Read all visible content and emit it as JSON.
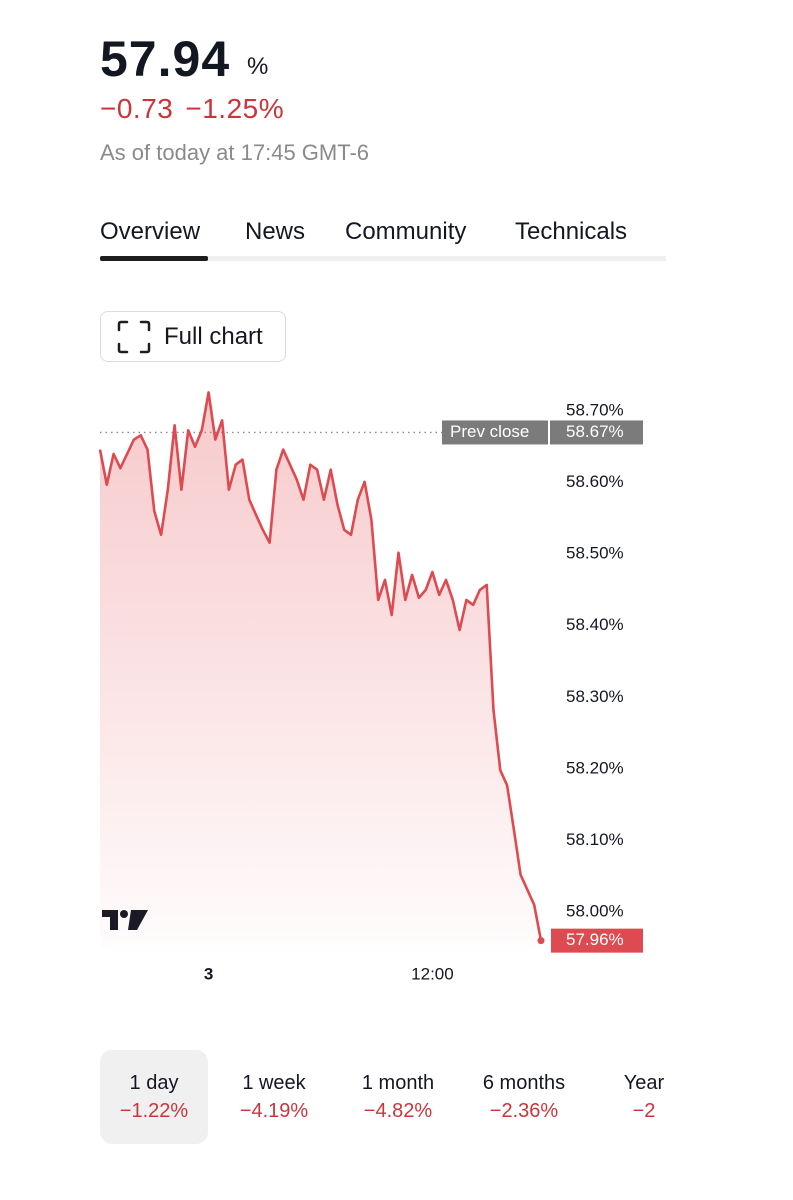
{
  "header": {
    "price": "57.94",
    "unit": "%",
    "change": "−0.73",
    "change_pct": "−1.25%",
    "as_of": "As of today at 17:45 GMT-6"
  },
  "tabs": [
    "Overview",
    "News",
    "Community",
    "Technicals"
  ],
  "full_chart": "Full chart",
  "chart_data": {
    "type": "line",
    "categories": [
      null,
      null,
      null,
      null,
      null,
      null,
      null,
      null,
      null,
      null,
      null,
      null,
      null,
      null,
      null,
      null,
      "3",
      null,
      null,
      null,
      null,
      null,
      null,
      null,
      null,
      null,
      null,
      null,
      null,
      null,
      null,
      null,
      null,
      null,
      null,
      null,
      null,
      null,
      null,
      null,
      null,
      null,
      null,
      null,
      null,
      null,
      null,
      null,
      null,
      "12:00",
      null,
      null,
      null,
      null,
      null,
      null,
      null,
      null,
      null,
      null,
      null,
      null,
      null,
      null,
      null,
      null
    ],
    "series": [
      {
        "color": "#dd4a4f",
        "values": [
          58.646,
          58.597,
          58.64,
          58.62,
          58.64,
          58.66,
          58.666,
          58.646,
          58.56,
          58.527,
          58.59,
          58.68,
          58.59,
          58.673,
          58.65,
          58.673,
          58.726,
          58.66,
          58.687,
          58.59,
          58.625,
          58.632,
          58.576,
          58.555,
          58.534,
          58.516,
          58.618,
          58.646,
          58.625,
          58.604,
          58.576,
          58.625,
          58.618,
          58.576,
          58.618,
          58.569,
          58.534,
          58.527,
          58.576,
          58.601,
          58.548,
          58.436,
          58.464,
          58.415,
          58.502,
          58.436,
          58.471,
          58.439,
          58.45,
          58.475,
          58.443,
          58.464,
          58.436,
          58.394,
          58.436,
          58.429,
          58.45,
          58.457,
          58.282,
          58.198,
          58.177,
          58.115,
          58.052,
          58.031,
          58.01,
          57.96
        ]
      }
    ],
    "ylim": [
      57.95,
      58.73
    ],
    "yticks": [
      {
        "value": 58.7,
        "label": "58.70%"
      },
      {
        "value": 58.6,
        "label": "58.60%"
      },
      {
        "value": 58.5,
        "label": "58.50%"
      },
      {
        "value": 58.4,
        "label": "58.40%"
      },
      {
        "value": 58.3,
        "label": "58.30%"
      },
      {
        "value": 58.2,
        "label": "58.20%"
      },
      {
        "value": 58.1,
        "label": "58.10%"
      },
      {
        "value": 58,
        "label": "58.00%"
      }
    ],
    "prev_close": {
      "label": "Prev close",
      "value": 58.67,
      "value_label": "58.67%"
    },
    "last_price": {
      "value": 57.96,
      "label": "57.96%"
    }
  },
  "periods": [
    {
      "name": "1 day",
      "change": "−1.22%"
    },
    {
      "name": "1 week",
      "change": "−4.19%"
    },
    {
      "name": "1 month",
      "change": "−4.82%"
    },
    {
      "name": "6 months",
      "change": "−2.36%"
    },
    {
      "name": "Year",
      "change": "−2"
    }
  ]
}
